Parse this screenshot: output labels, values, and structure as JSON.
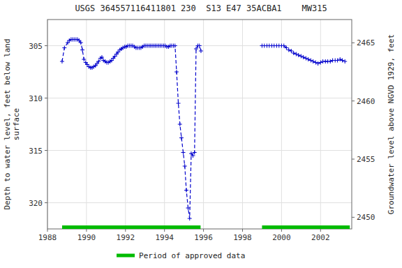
{
  "chart_data": {
    "type": "line",
    "title": "USGS 364557116411801 230  S13 E47 35ACBA1    MW315",
    "ylabel": "Depth to water level, feet below land\nsurface",
    "y2label": "Groundwater level above NGVD 1929, feet",
    "xlim": [
      1988,
      2003.6
    ],
    "xticks": [
      1988,
      1990,
      1992,
      1994,
      1996,
      1998,
      2000,
      2002
    ],
    "ylim": [
      322.5,
      302.5
    ],
    "yticks": [
      305,
      310,
      315,
      320
    ],
    "y2lim": [
      2449.0,
      2467.0
    ],
    "y2ticks": [
      2450,
      2455,
      2460,
      2465
    ],
    "grid": true,
    "series": [
      {
        "color": "#0000cc",
        "line_style": "dashed",
        "marker": "plus",
        "x": [
          1988.75,
          1988.87,
          1989.04,
          1989.12,
          1989.21,
          1989.29,
          1989.37,
          1989.46,
          1989.54,
          1989.62,
          1989.71,
          1989.79,
          1989.87,
          1989.96,
          1990.04,
          1990.12,
          1990.21,
          1990.29,
          1990.37,
          1990.46,
          1990.54,
          1990.62,
          1990.71,
          1990.79,
          1990.87,
          1990.96,
          1991.04,
          1991.12,
          1991.21,
          1991.29,
          1991.37,
          1991.46,
          1991.54,
          1991.62,
          1991.71,
          1991.79,
          1991.87,
          1991.96,
          1992.04,
          1992.12,
          1992.21,
          1992.29,
          1992.37,
          1992.46,
          1992.54,
          1992.62,
          1992.71,
          1992.79,
          1992.87,
          1992.96,
          1993.04,
          1993.12,
          1993.21,
          1993.29,
          1993.37,
          1993.46,
          1993.54,
          1993.62,
          1993.71,
          1993.79,
          1993.87,
          1993.96,
          1994.04,
          1994.12,
          1994.21,
          1994.29,
          1994.37,
          1994.46,
          1994.54,
          1994.62,
          1994.71,
          1994.79,
          1994.87,
          1994.96,
          1995.04,
          1995.12,
          1995.21,
          1995.29,
          1995.37,
          1995.46,
          1995.54,
          1995.62,
          1995.71,
          1995.79,
          1995.87
        ],
        "values": [
          306.5,
          305.2,
          304.7,
          304.5,
          304.4,
          304.4,
          304.4,
          304.4,
          304.4,
          304.5,
          304.7,
          305.4,
          306.3,
          306.6,
          306.8,
          307.0,
          307.1,
          307.1,
          307.0,
          306.9,
          306.7,
          306.5,
          306.2,
          306.1,
          306.4,
          306.5,
          306.6,
          306.6,
          306.5,
          306.4,
          306.2,
          306.0,
          305.8,
          305.6,
          305.4,
          305.3,
          305.2,
          305.1,
          305.1,
          305.0,
          305.0,
          305.0,
          305.0,
          305.1,
          305.2,
          305.2,
          305.2,
          305.2,
          305.1,
          305.0,
          305.0,
          305.0,
          305.0,
          305.0,
          305.0,
          305.0,
          305.0,
          305.0,
          305.0,
          305.0,
          305.0,
          305.0,
          305.0,
          305.1,
          305.1,
          305.0,
          305.0,
          305.0,
          305.0,
          307.5,
          310.5,
          312.5,
          313.8,
          315.2,
          316.5,
          318.8,
          320.5,
          321.5,
          315.3,
          315.5,
          315.2,
          305.3,
          305.0,
          305.0,
          305.5
        ]
      },
      {
        "color": "#0000cc",
        "line_style": "dashed",
        "marker": "plus",
        "x": [
          1999.0,
          1999.12,
          1999.25,
          1999.37,
          1999.5,
          1999.62,
          1999.75,
          1999.87,
          2000.0,
          2000.12,
          2000.25,
          2000.37,
          2000.5,
          2000.62,
          2000.75,
          2000.87,
          2001.0,
          2001.12,
          2001.25,
          2001.37,
          2001.5,
          2001.62,
          2001.75,
          2001.87,
          2002.0,
          2002.12,
          2002.25,
          2002.37,
          2002.5,
          2002.62,
          2002.75,
          2002.87,
          2003.0,
          2003.12,
          2003.25
        ],
        "values": [
          305.0,
          305.0,
          305.0,
          305.0,
          305.0,
          305.0,
          305.0,
          305.0,
          305.0,
          305.0,
          305.2,
          305.4,
          305.5,
          305.7,
          305.8,
          305.9,
          306.0,
          306.1,
          306.2,
          306.3,
          306.4,
          306.5,
          306.6,
          306.7,
          306.6,
          306.5,
          306.5,
          306.5,
          306.5,
          306.4,
          306.4,
          306.4,
          306.3,
          306.4,
          306.5
        ]
      }
    ],
    "approved_periods": {
      "name": "Period of approved data",
      "color": "#00bb00",
      "values": [
        [
          1988.75,
          1995.85
        ],
        [
          1999.0,
          2003.5
        ]
      ]
    }
  }
}
